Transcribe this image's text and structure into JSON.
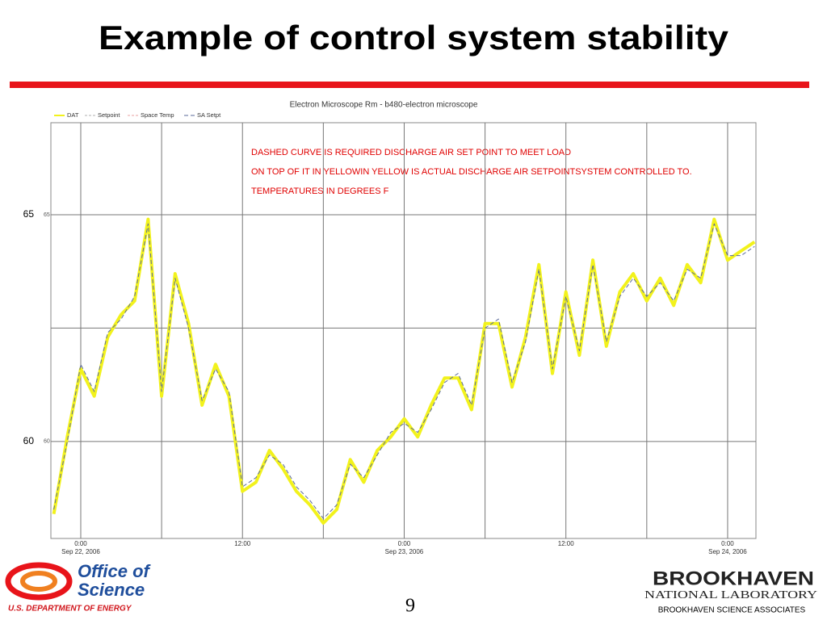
{
  "slide": {
    "title": "Example of control system stability",
    "page_number": "9",
    "logo_left": {
      "line1": "Office of",
      "line2": "Science",
      "line3": "U.S. DEPARTMENT OF ENERGY"
    },
    "logo_right": {
      "line1": "BROOKHAVEN",
      "line2": "NATIONAL LABORATORY",
      "line3": "BROOKHAVEN SCIENCE ASSOCIATES"
    }
  },
  "chart_data": {
    "type": "line",
    "title": "Electron Microscope Rm - b480-electron microscope",
    "annotations": [
      "DASHED CURVE IS REQUIRED DISCHARGE AIR SET POINT TO MEET LOAD",
      "ON TOP OF IT IN YELLOWIN YELLOW IS ACTUAL DISCHARGE AIR SETPOINTSYSTEM CONTROLLED TO.",
      "TEMPERATURES IN DEGREES F"
    ],
    "x": [
      "2006-09-21 22:00",
      "2006-09-21 23:00",
      "2006-09-22 00:00",
      "2006-09-22 01:00",
      "2006-09-22 02:00",
      "2006-09-22 03:00",
      "2006-09-22 04:00",
      "2006-09-22 05:00",
      "2006-09-22 06:00",
      "2006-09-22 07:00",
      "2006-09-22 08:00",
      "2006-09-22 09:00",
      "2006-09-22 10:00",
      "2006-09-22 11:00",
      "2006-09-22 12:00",
      "2006-09-22 13:00",
      "2006-09-22 14:00",
      "2006-09-22 15:00",
      "2006-09-22 16:00",
      "2006-09-22 17:00",
      "2006-09-22 18:00",
      "2006-09-22 19:00",
      "2006-09-22 20:00",
      "2006-09-22 21:00",
      "2006-09-22 22:00",
      "2006-09-22 23:00",
      "2006-09-23 00:00",
      "2006-09-23 01:00",
      "2006-09-23 02:00",
      "2006-09-23 03:00",
      "2006-09-23 04:00",
      "2006-09-23 05:00",
      "2006-09-23 06:00",
      "2006-09-23 07:00",
      "2006-09-23 08:00",
      "2006-09-23 09:00",
      "2006-09-23 10:00",
      "2006-09-23 11:00",
      "2006-09-23 12:00",
      "2006-09-23 13:00",
      "2006-09-23 14:00",
      "2006-09-23 15:00",
      "2006-09-23 16:00",
      "2006-09-23 17:00",
      "2006-09-23 18:00",
      "2006-09-23 19:00",
      "2006-09-23 20:00",
      "2006-09-23 21:00",
      "2006-09-23 22:00",
      "2006-09-23 23:00",
      "2006-09-24 00:00",
      "2006-09-24 01:00",
      "2006-09-24 02:00"
    ],
    "series": [
      {
        "name": "DAT",
        "color": "#f2f21c",
        "values": [
          58.4,
          60.1,
          61.6,
          61.0,
          62.3,
          62.8,
          63.1,
          64.9,
          61.0,
          63.7,
          62.6,
          60.8,
          61.7,
          61.0,
          58.9,
          59.1,
          59.8,
          59.4,
          58.9,
          58.6,
          58.2,
          58.5,
          59.6,
          59.1,
          59.8,
          60.1,
          60.5,
          60.1,
          60.8,
          61.4,
          61.4,
          60.7,
          62.6,
          62.6,
          61.2,
          62.3,
          63.9,
          61.5,
          63.3,
          61.9,
          64.0,
          62.1,
          63.3,
          63.7,
          63.1,
          63.6,
          63.0,
          63.9,
          63.5,
          64.9,
          64.0,
          64.2,
          64.4
        ]
      },
      {
        "name": "Setpoint",
        "color": "#b0b0b0",
        "values": [
          null,
          null,
          null,
          null,
          null,
          null,
          null,
          null,
          null,
          null,
          null,
          null,
          null,
          null,
          null,
          null,
          null,
          null,
          null,
          null,
          null,
          null,
          null,
          null,
          null,
          null,
          null,
          null,
          null,
          null,
          null,
          null,
          null,
          null,
          null,
          null,
          null,
          null,
          null,
          null,
          null,
          null,
          null,
          null,
          null,
          null,
          null,
          null,
          null,
          null,
          null,
          null,
          null
        ]
      },
      {
        "name": "Space Temp",
        "color": "#e8a0a0",
        "values": [
          null,
          null,
          null,
          null,
          null,
          null,
          null,
          null,
          null,
          null,
          null,
          null,
          null,
          null,
          null,
          null,
          null,
          null,
          null,
          null,
          null,
          null,
          null,
          null,
          null,
          null,
          null,
          null,
          null,
          null,
          null,
          null,
          null,
          null,
          null,
          null,
          null,
          null,
          null,
          null,
          null,
          null,
          null,
          null,
          null,
          null,
          null,
          null,
          null,
          null,
          null,
          null,
          null
        ]
      },
      {
        "name": "SA Setpt",
        "color": "#5a6a9a",
        "values": [
          58.5,
          60.0,
          61.7,
          61.1,
          62.4,
          62.7,
          63.2,
          64.8,
          61.1,
          63.6,
          62.5,
          60.9,
          61.6,
          61.1,
          59.0,
          59.2,
          59.7,
          59.5,
          59.0,
          58.7,
          58.3,
          58.6,
          59.5,
          59.2,
          59.7,
          60.2,
          60.4,
          60.2,
          60.7,
          61.3,
          61.5,
          60.8,
          62.5,
          62.7,
          61.3,
          62.2,
          63.8,
          61.6,
          63.2,
          62.0,
          63.9,
          62.2,
          63.2,
          63.6,
          63.2,
          63.5,
          63.1,
          63.8,
          63.6,
          64.8,
          64.1,
          64.1,
          64.3
        ]
      }
    ],
    "xlim": [
      "2006-09-21 21:47",
      "2006-09-24 02:06"
    ],
    "xticks": [
      {
        "value": "2006-09-22 00:00",
        "label": "0:00",
        "date": "Sep 22, 2006"
      },
      {
        "value": "2006-09-22 12:00",
        "label": "12:00"
      },
      {
        "value": "2006-09-23 00:00",
        "label": "0:00",
        "date": "Sep 23, 2006"
      },
      {
        "value": "2006-09-23 12:00",
        "label": "12:00"
      },
      {
        "value": "2006-09-24 00:00",
        "label": "0:00",
        "date": "Sep 24, 2006"
      }
    ],
    "xgrid_minor": [
      "2006-09-22 06:00",
      "2006-09-22 18:00",
      "2006-09-23 06:00",
      "2006-09-23 18:00"
    ],
    "ylim": [
      57.86,
      67.03
    ],
    "yticks": [
      60,
      65
    ],
    "ygrid_minor": [
      62.5
    ],
    "grid": true
  }
}
